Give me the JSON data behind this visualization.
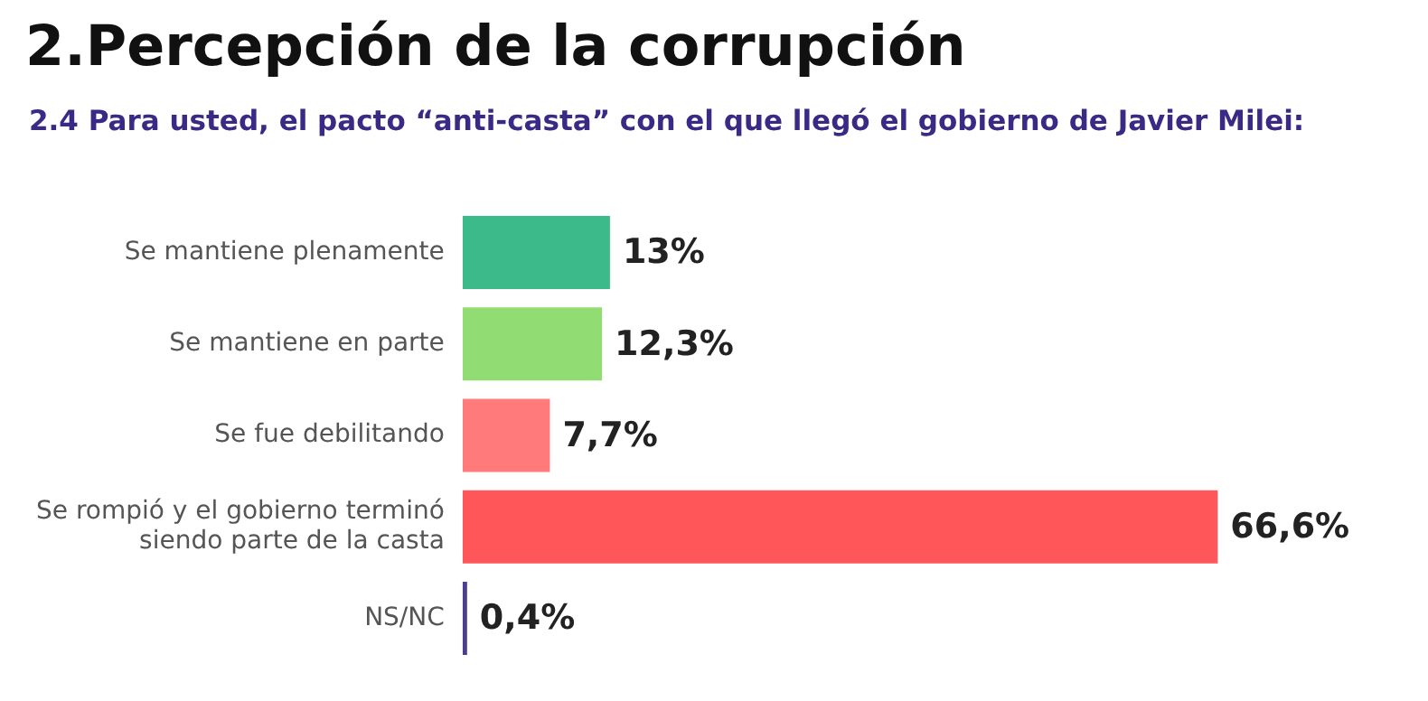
{
  "chart_data": {
    "type": "bar",
    "orientation": "horizontal",
    "title": "2.Percepción de la corrupción",
    "subtitle": "2.4 Para usted, el pacto “anti-casta” con el que llegó el gobierno de Javier Milei:",
    "categories": [
      "Se mantiene plenamente",
      "Se mantiene en parte",
      "Se fue debilitando",
      "Se rompió y el gobierno terminó siendo parte de la casta",
      "NS/NC"
    ],
    "values": [
      13,
      12.3,
      7.7,
      66.6,
      0.4
    ],
    "colors": [
      "#3cba8a",
      "#92dd73",
      "#ff7a7a",
      "#ff5759",
      "#4b3d8f"
    ],
    "value_labels": [
      "13%",
      "12,3%",
      "7,7%",
      "66,6%",
      "0,4%"
    ],
    "grid": false,
    "legend": false
  }
}
